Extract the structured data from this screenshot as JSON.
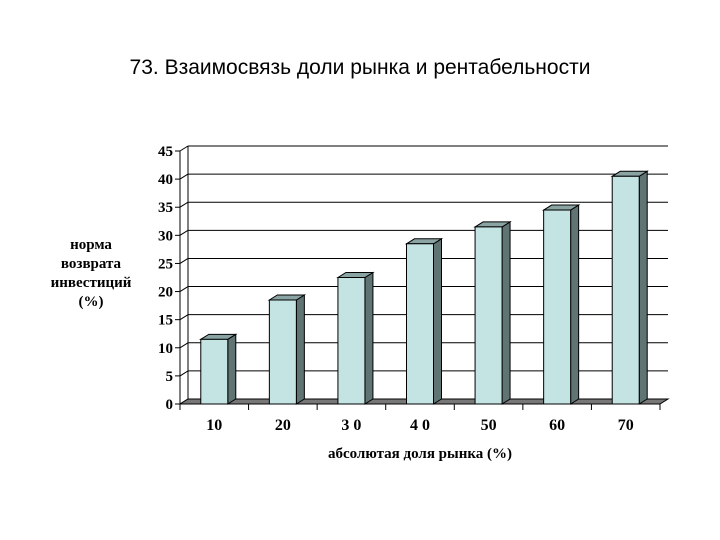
{
  "title": "73. Взаимосвязь доли рынка и рентабельности",
  "chart_data": {
    "type": "bar",
    "title": "73. Взаимосвязь доли рынка и рентабельности",
    "categories": [
      "10",
      "20",
      "3 0",
      "4 0",
      "50",
      "60",
      "70"
    ],
    "values": [
      11.5,
      18.5,
      22.5,
      28.5,
      31.5,
      34.5,
      40.5
    ],
    "xlabel": "абсолютая доля рынка (%)",
    "ylabel_lines": [
      "норма",
      "возврата",
      "инвестиций",
      "(%)"
    ],
    "ylim": [
      0,
      45
    ],
    "yticks": [
      "0",
      "5",
      "10",
      "15",
      "20",
      "25",
      "30",
      "35",
      "40",
      "45"
    ],
    "grid": true,
    "legend": "none",
    "style": "3d-column",
    "colors": {
      "bar_front": "#c4e4e4",
      "bar_side": "#607474",
      "bar_top": "#8aa3a3",
      "floor": "#777777"
    }
  }
}
